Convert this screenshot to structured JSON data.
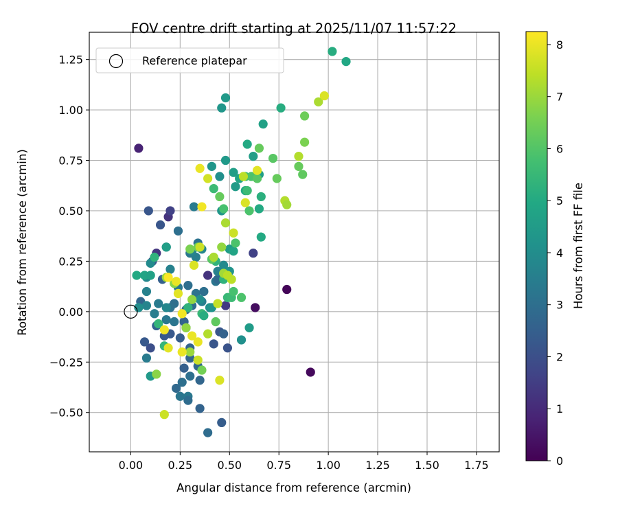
{
  "chart_data": {
    "type": "scatter",
    "title": "FOV centre drift starting at 2025/11/07 11:57:22",
    "xlabel": "Angular distance from reference (arcmin)",
    "ylabel": "Rotation from reference (arcmin)",
    "xlim": [
      -0.21,
      1.865
    ],
    "ylim": [
      -0.695,
      1.385
    ],
    "xticks": [
      0.0,
      0.25,
      0.5,
      0.75,
      1.0,
      1.25,
      1.5,
      1.75
    ],
    "xtick_labels": [
      "0.00",
      "0.25",
      "0.50",
      "0.75",
      "1.00",
      "1.25",
      "1.50",
      "1.75"
    ],
    "yticks": [
      -0.5,
      -0.25,
      0.0,
      0.25,
      0.5,
      0.75,
      1.0,
      1.25
    ],
    "ytick_labels": [
      "−0.50",
      "−0.25",
      "0.00",
      "0.25",
      "0.50",
      "0.75",
      "1.00",
      "1.25"
    ],
    "grid": true,
    "legend": {
      "position": "top-left",
      "entries": [
        "Reference platepar"
      ]
    },
    "reference_point": {
      "x": 0.0,
      "y": 0.0,
      "label": "Reference platepar"
    },
    "colorbar": {
      "label": "Hours from first FF file",
      "colormap": "viridis",
      "range": [
        0,
        8.25
      ],
      "ticks": [
        0,
        1,
        2,
        3,
        4,
        5,
        6,
        7,
        8
      ],
      "tick_labels": [
        "0",
        "1",
        "2",
        "3",
        "4",
        "5",
        "6",
        "7",
        "8"
      ]
    },
    "series": [
      {
        "name": "FOV centre",
        "fields": [
          "x",
          "y",
          "hours"
        ],
        "points": [
          [
            0.04,
            0.81,
            0.8
          ],
          [
            0.79,
            0.11,
            0.1
          ],
          [
            0.91,
            -0.3,
            0.2
          ],
          [
            0.63,
            0.02,
            0.3
          ],
          [
            0.19,
            0.47,
            1.2
          ],
          [
            0.13,
            0.29,
            1.3
          ],
          [
            0.39,
            0.18,
            1.2
          ],
          [
            0.62,
            0.29,
            1.6
          ],
          [
            0.2,
            0.5,
            1.6
          ],
          [
            0.09,
            0.5,
            2.2
          ],
          [
            0.15,
            0.43,
            2.2
          ],
          [
            0.16,
            0.16,
            2.5
          ],
          [
            0.18,
            0.32,
            2.6
          ],
          [
            0.11,
            0.25,
            2.2
          ],
          [
            0.05,
            0.05,
            2.7
          ],
          [
            0.1,
            -0.18,
            2.0
          ],
          [
            0.07,
            -0.15,
            2.3
          ],
          [
            0.13,
            -0.07,
            2.6
          ],
          [
            0.17,
            -0.12,
            2.3
          ],
          [
            0.2,
            -0.11,
            2.3
          ],
          [
            0.23,
            -0.38,
            2.8
          ],
          [
            0.25,
            -0.42,
            3.2
          ],
          [
            0.26,
            -0.35,
            3.0
          ],
          [
            0.29,
            -0.42,
            3.3
          ],
          [
            0.29,
            -0.44,
            2.9
          ],
          [
            0.3,
            -0.32,
            3.0
          ],
          [
            0.35,
            -0.34,
            2.7
          ],
          [
            0.35,
            -0.48,
            2.6
          ],
          [
            0.39,
            -0.6,
            2.9
          ],
          [
            0.46,
            -0.55,
            2.4
          ],
          [
            0.27,
            -0.28,
            2.5
          ],
          [
            0.3,
            -0.23,
            2.7
          ],
          [
            0.34,
            -0.27,
            2.8
          ],
          [
            0.3,
            -0.18,
            2.6
          ],
          [
            0.25,
            -0.13,
            2.4
          ],
          [
            0.28,
            -0.08,
            2.5
          ],
          [
            0.27,
            -0.05,
            2.6
          ],
          [
            0.28,
            0.01,
            2.8
          ],
          [
            0.31,
            0.03,
            2.9
          ],
          [
            0.29,
            0.13,
            3.0
          ],
          [
            0.24,
            0.12,
            3.3
          ],
          [
            0.22,
            0.04,
            3.0
          ],
          [
            0.2,
            0.02,
            3.1
          ],
          [
            0.22,
            -0.05,
            3.2
          ],
          [
            0.18,
            -0.04,
            3.3
          ],
          [
            0.14,
            0.04,
            3.4
          ],
          [
            0.12,
            -0.01,
            3.5
          ],
          [
            0.08,
            0.1,
            3.6
          ],
          [
            0.08,
            0.17,
            3.8
          ],
          [
            0.1,
            0.24,
            3.9
          ],
          [
            0.08,
            0.03,
            3.7
          ],
          [
            0.04,
            0.02,
            4.0
          ],
          [
            0.08,
            -0.23,
            3.4
          ],
          [
            0.1,
            -0.32,
            4.4
          ],
          [
            0.18,
            0.02,
            3.8
          ],
          [
            0.2,
            0.21,
            3.6
          ],
          [
            0.24,
            0.4,
            3.0
          ],
          [
            0.32,
            0.52,
            3.4
          ],
          [
            0.3,
            0.29,
            3.3
          ],
          [
            0.33,
            0.09,
            3.1
          ],
          [
            0.36,
            0.05,
            3.5
          ],
          [
            0.37,
            0.1,
            3.0
          ],
          [
            0.33,
            0.27,
            3.5
          ],
          [
            0.34,
            0.34,
            3.1
          ],
          [
            0.31,
            0.3,
            3.7
          ],
          [
            0.35,
            0.06,
            4.0
          ],
          [
            0.36,
            0.31,
            3.8
          ],
          [
            0.4,
            0.02,
            4.1
          ],
          [
            0.41,
            0.02,
            4.2
          ],
          [
            0.43,
            0.15,
            3.2
          ],
          [
            0.44,
            0.16,
            2.8
          ],
          [
            0.44,
            0.2,
            3.6
          ],
          [
            0.41,
            0.72,
            4.3
          ],
          [
            0.45,
            0.67,
            4.1
          ],
          [
            0.46,
            0.5,
            4.3
          ],
          [
            0.47,
            0.23,
            3.9
          ],
          [
            0.48,
            0.03,
            1.4
          ],
          [
            0.49,
            -0.18,
            2.1
          ],
          [
            0.45,
            -0.1,
            2.2
          ],
          [
            0.47,
            -0.11,
            2.6
          ],
          [
            0.42,
            -0.16,
            2.2
          ],
          [
            0.56,
            -0.14,
            4.1
          ],
          [
            0.6,
            -0.08,
            4.5
          ],
          [
            0.5,
            0.2,
            4.2
          ],
          [
            0.5,
            0.31,
            4.5
          ],
          [
            0.52,
            0.3,
            4.8
          ],
          [
            0.52,
            0.69,
            4.6
          ],
          [
            0.48,
            0.75,
            4.4
          ],
          [
            0.46,
            1.01,
            4.3
          ],
          [
            0.48,
            1.06,
            4.4
          ],
          [
            0.53,
            0.62,
            4.5
          ],
          [
            0.55,
            0.66,
            4.8
          ],
          [
            0.58,
            0.6,
            5.0
          ],
          [
            0.59,
            0.83,
            5.0
          ],
          [
            0.62,
            0.77,
            4.6
          ],
          [
            0.65,
            0.68,
            4.6
          ],
          [
            0.65,
            0.51,
            5.0
          ],
          [
            0.66,
            0.57,
            5.2
          ],
          [
            0.66,
            0.37,
            5.0
          ],
          [
            0.67,
            0.93,
            4.7
          ],
          [
            0.76,
            1.01,
            5.1
          ],
          [
            1.02,
            1.29,
            5.1
          ],
          [
            1.09,
            1.24,
            4.9
          ],
          [
            0.03,
            0.18,
            5.0
          ],
          [
            0.12,
            0.27,
            5.3
          ],
          [
            0.07,
            0.18,
            4.8
          ],
          [
            0.18,
            0.32,
            4.6
          ],
          [
            0.1,
            0.18,
            4.7
          ],
          [
            0.14,
            -0.06,
            5.4
          ],
          [
            0.17,
            -0.17,
            5.4
          ],
          [
            0.29,
            0.02,
            5.3
          ],
          [
            0.36,
            -0.01,
            5.5
          ],
          [
            0.37,
            -0.02,
            5.1
          ],
          [
            0.43,
            0.25,
            5.3
          ],
          [
            0.49,
            0.07,
            5.5
          ],
          [
            0.47,
            0.16,
            5.3
          ],
          [
            0.51,
            0.07,
            5.6
          ],
          [
            0.52,
            0.1,
            5.8
          ],
          [
            0.53,
            0.34,
            5.9
          ],
          [
            0.56,
            0.07,
            5.9
          ],
          [
            0.58,
            0.67,
            5.6
          ],
          [
            0.6,
            0.5,
            5.9
          ],
          [
            0.59,
            0.6,
            5.6
          ],
          [
            0.61,
            0.67,
            5.9
          ],
          [
            0.64,
            0.66,
            6.1
          ],
          [
            0.65,
            0.81,
            6.3
          ],
          [
            0.72,
            0.76,
            6.1
          ],
          [
            0.74,
            0.66,
            6.3
          ],
          [
            0.85,
            0.72,
            6.3
          ],
          [
            0.87,
            0.68,
            6.2
          ],
          [
            0.88,
            0.97,
            6.4
          ],
          [
            0.88,
            0.84,
            6.6
          ],
          [
            0.45,
            0.57,
            6.3
          ],
          [
            0.47,
            0.51,
            5.8
          ],
          [
            0.42,
            0.61,
            5.6
          ],
          [
            0.41,
            0.26,
            6.1
          ],
          [
            0.43,
            -0.05,
            6.2
          ],
          [
            0.36,
            -0.29,
            6.5
          ],
          [
            0.34,
            0.32,
            6.4
          ],
          [
            0.3,
            0.31,
            6.6
          ],
          [
            0.22,
            0.14,
            6.8
          ],
          [
            0.18,
            0.17,
            7.0
          ],
          [
            0.13,
            -0.31,
            6.8
          ],
          [
            0.17,
            -0.51,
            7.6
          ],
          [
            0.28,
            -0.08,
            6.9
          ],
          [
            0.3,
            -0.2,
            7.0
          ],
          [
            0.31,
            0.06,
            6.9
          ],
          [
            0.39,
            -0.11,
            7.3
          ],
          [
            0.42,
            0.27,
            7.2
          ],
          [
            0.44,
            0.04,
            7.5
          ],
          [
            0.47,
            0.19,
            7.1
          ],
          [
            0.48,
            0.44,
            7.2
          ],
          [
            0.49,
            0.18,
            7.4
          ],
          [
            0.51,
            0.16,
            7.4
          ],
          [
            0.52,
            0.39,
            7.6
          ],
          [
            0.58,
            0.54,
            7.8
          ],
          [
            0.57,
            0.67,
            7.4
          ],
          [
            0.64,
            0.7,
            7.9
          ],
          [
            0.78,
            0.55,
            7.3
          ],
          [
            0.79,
            0.53,
            7.1
          ],
          [
            0.85,
            0.77,
            7.3
          ],
          [
            0.95,
            1.04,
            7.2
          ],
          [
            0.98,
            1.07,
            7.8
          ],
          [
            0.35,
            0.71,
            8.0
          ],
          [
            0.39,
            0.66,
            7.7
          ],
          [
            0.36,
            0.52,
            8.1
          ],
          [
            0.35,
            0.32,
            7.6
          ],
          [
            0.32,
            0.23,
            7.8
          ],
          [
            0.34,
            -0.24,
            7.6
          ],
          [
            0.34,
            -0.15,
            8.0
          ],
          [
            0.31,
            -0.12,
            8.0
          ],
          [
            0.26,
            -0.2,
            8.0
          ],
          [
            0.26,
            -0.01,
            8.1
          ],
          [
            0.24,
            0.09,
            7.9
          ],
          [
            0.23,
            0.15,
            8.0
          ],
          [
            0.19,
            0.17,
            8.2
          ],
          [
            0.17,
            -0.09,
            8.1
          ],
          [
            0.19,
            -0.18,
            7.9
          ],
          [
            0.45,
            -0.34,
            7.8
          ],
          [
            0.46,
            0.32,
            6.9
          ]
        ]
      }
    ]
  }
}
